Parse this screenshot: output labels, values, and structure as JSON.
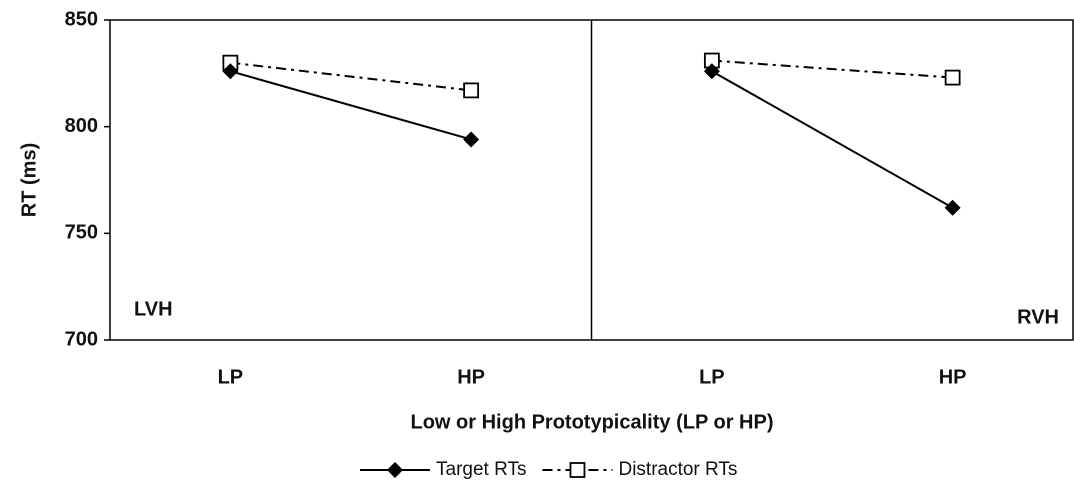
{
  "chart_data": {
    "type": "line",
    "y_label": "RT (ms)",
    "x_label": "Low or High Prototypicality (LP or HP)",
    "panels": [
      {
        "label": "LVH"
      },
      {
        "label": "RVH"
      }
    ],
    "categories": [
      "LP",
      "HP",
      "LP",
      "HP"
    ],
    "series": [
      {
        "name": "Target RTs",
        "color": "#000000",
        "marker": "diamond",
        "dash": "solid",
        "values": [
          826,
          794,
          826,
          762
        ]
      },
      {
        "name": "Distractor RTs",
        "color": "#000000",
        "marker": "square",
        "dash": "dashdot",
        "values": [
          830,
          817,
          831,
          823
        ]
      }
    ],
    "ylim": [
      700,
      850
    ],
    "yticks": [
      700,
      750,
      800,
      850
    ],
    "grid": false,
    "legend": "bottom"
  }
}
